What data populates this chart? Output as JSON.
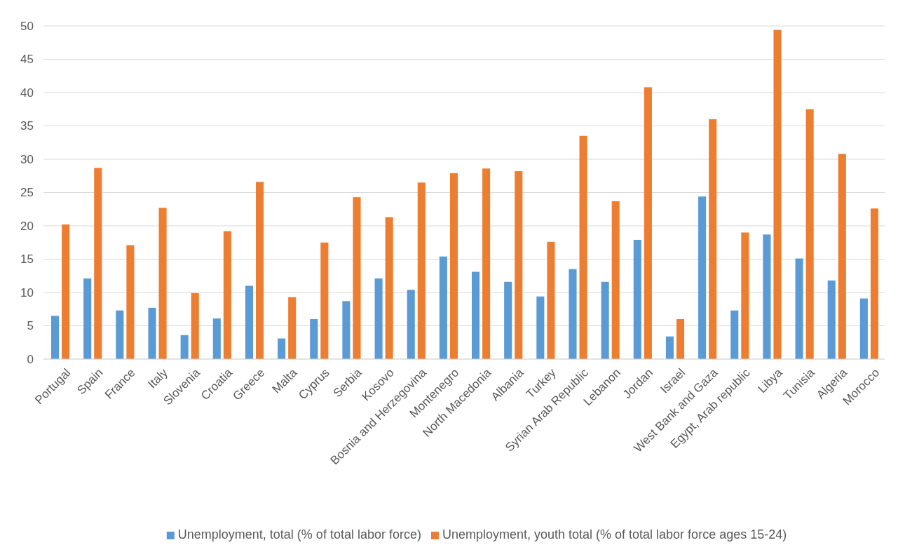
{
  "chart_data": {
    "type": "bar",
    "categories": [
      "Portugal",
      "Spain",
      "France",
      "Italy",
      "Slovenia",
      "Croatia",
      "Greece",
      "Malta",
      "Cyprus",
      "Serbia",
      "Kosovo",
      "Bosnia and Herzegovina",
      "Montenegro",
      "North Macedonia",
      "Albania",
      "Turkey",
      "Syrian Arab Republic",
      "Lebanon",
      "Jordan",
      "Israel",
      "West Bank and Gaza",
      "Egypt, Arab republic",
      "Libya",
      "Tunisia",
      "Algeria",
      "Morocco"
    ],
    "series": [
      {
        "name": "Unemployment, total (% of total labor force)",
        "color": "#5b9bd5",
        "values": [
          6.5,
          12.1,
          7.3,
          7.7,
          3.6,
          6.1,
          11.0,
          3.1,
          6.0,
          8.7,
          12.1,
          10.4,
          15.4,
          13.1,
          11.6,
          9.4,
          13.5,
          11.6,
          17.9,
          3.4,
          24.4,
          7.3,
          18.7,
          15.1,
          11.8,
          9.1
        ]
      },
      {
        "name": "Unemployment, youth total (% of total labor force ages 15-24)",
        "color": "#ed7d31",
        "values": [
          20.2,
          28.7,
          17.1,
          22.7,
          9.9,
          19.2,
          26.6,
          9.3,
          17.5,
          24.3,
          21.3,
          26.5,
          27.9,
          28.6,
          28.2,
          17.6,
          33.5,
          23.7,
          40.8,
          6.0,
          36.0,
          19.0,
          49.4,
          37.5,
          30.8,
          22.6
        ]
      }
    ],
    "ylim": [
      0,
      50
    ],
    "yticks": [
      0,
      5,
      10,
      15,
      20,
      25,
      30,
      35,
      40,
      45,
      50
    ],
    "grid": "y",
    "legend": "bottom"
  }
}
